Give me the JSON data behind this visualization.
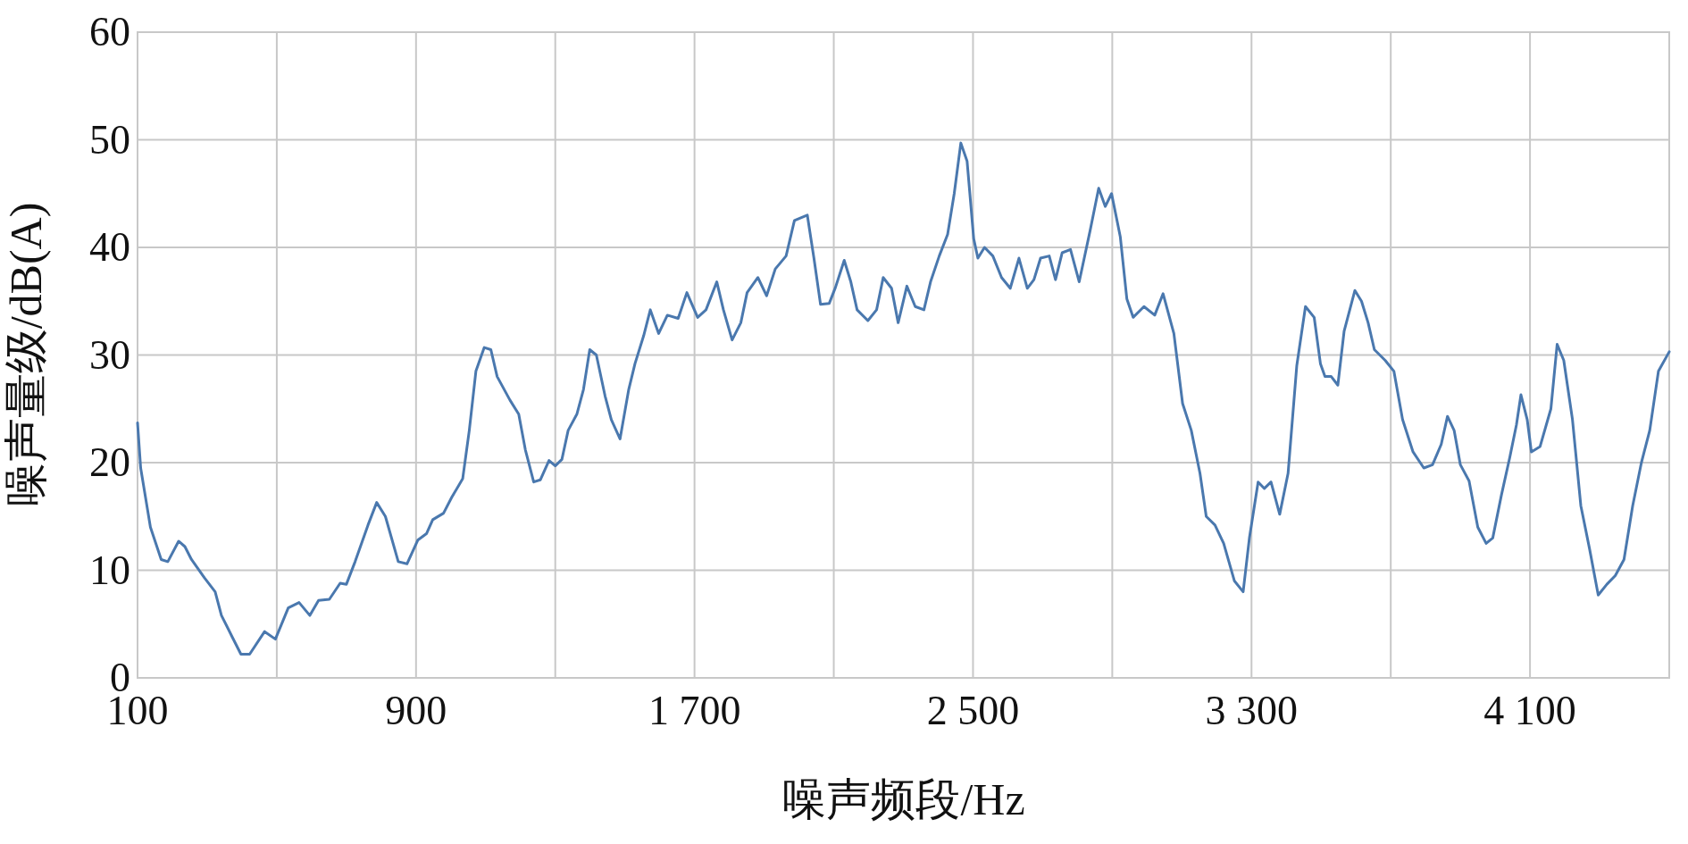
{
  "chart_data": {
    "type": "line",
    "xlabel": "噪声频段/Hz",
    "ylabel": "噪声量级/dB(A)",
    "xlim": [
      100,
      4500
    ],
    "ylim": [
      0,
      60
    ],
    "xticks": [
      100,
      {
        "value": 500,
        "label": null
      },
      {
        "value": 900,
        "label": "900"
      },
      {
        "value": 1300,
        "label": null
      },
      {
        "value": 1700,
        "label": "1 700"
      },
      {
        "value": 2100,
        "label": null
      },
      {
        "value": 2500,
        "label": "2 500"
      },
      {
        "value": 2900,
        "label": null
      },
      {
        "value": 3300,
        "label": "3 300"
      },
      {
        "value": 3700,
        "label": null
      },
      {
        "value": 4100,
        "label": "4 100"
      },
      {
        "value": 4500,
        "label": null
      }
    ],
    "yticks": [
      0,
      10,
      20,
      30,
      40,
      50,
      60
    ],
    "grid": true,
    "marker": "none",
    "line_style": "solid",
    "series": [
      {
        "color": "#4a78ae",
        "x": [
          100,
          109,
          137,
          168,
          187,
          218,
          236,
          255,
          292,
          323,
          341,
          372,
          397,
          422,
          465,
          496,
          533,
          564,
          595,
          620,
          651,
          682,
          700,
          725,
          762,
          787,
          812,
          849,
          874,
          905,
          930,
          948,
          979,
          1003,
          1034,
          1053,
          1072,
          1096,
          1115,
          1133,
          1170,
          1195,
          1214,
          1238,
          1257,
          1282,
          1300,
          1319,
          1337,
          1362,
          1381,
          1399,
          1418,
          1443,
          1461,
          1486,
          1511,
          1529,
          1554,
          1573,
          1597,
          1622,
          1653,
          1678,
          1709,
          1733,
          1764,
          1783,
          1808,
          1833,
          1851,
          1882,
          1907,
          1932,
          1963,
          1987,
          2024,
          2043,
          2062,
          2087,
          2105,
          2130,
          2149,
          2167,
          2198,
          2223,
          2242,
          2266,
          2285,
          2310,
          2334,
          2359,
          2378,
          2403,
          2427,
          2446,
          2465,
          2483,
          2502,
          2514,
          2533,
          2557,
          2582,
          2607,
          2632,
          2656,
          2675,
          2694,
          2719,
          2737,
          2756,
          2780,
          2805,
          2836,
          2861,
          2880,
          2898,
          2923,
          2942,
          2960,
          2991,
          3022,
          3046,
          3077,
          3102,
          3127,
          3152,
          3170,
          3195,
          3220,
          3251,
          3276,
          3294,
          3319,
          3337,
          3356,
          3381,
          3405,
          3430,
          3455,
          3480,
          3498,
          3511,
          3529,
          3548,
          3566,
          3597,
          3616,
          3635,
          3653,
          3684,
          3709,
          3734,
          3764,
          3795,
          3820,
          3845,
          3863,
          3882,
          3900,
          3925,
          3950,
          3974,
          3993,
          4018,
          4042,
          4061,
          4074,
          4092,
          4104,
          4129,
          4160,
          4178,
          4197,
          4222,
          4246,
          4271,
          4296,
          4321,
          4345,
          4370,
          4395,
          4420,
          4444,
          4469,
          4500
        ],
        "values": [
          23.7,
          19.5,
          14,
          11,
          10.8,
          12.7,
          12.2,
          11,
          9.3,
          8,
          5.8,
          3.8,
          2.2,
          2.2,
          4.3,
          3.6,
          6.5,
          7,
          5.8,
          7.2,
          7.3,
          8.8,
          8.7,
          10.8,
          14.2,
          16.3,
          15,
          10.8,
          10.6,
          12.8,
          13.4,
          14.7,
          15.3,
          16.8,
          18.5,
          23,
          28.5,
          30.7,
          30.5,
          28,
          25.8,
          24.5,
          21.2,
          18.2,
          18.4,
          20.2,
          19.7,
          20.3,
          23,
          24.5,
          26.8,
          30.5,
          30,
          26.2,
          24,
          22.2,
          26.8,
          29.2,
          31.8,
          34.2,
          32,
          33.7,
          33.4,
          35.8,
          33.5,
          34.2,
          36.8,
          34.2,
          31.4,
          33,
          35.8,
          37.2,
          35.5,
          38,
          39.2,
          42.5,
          43,
          39,
          34.7,
          34.8,
          36.3,
          38.8,
          36.8,
          34.2,
          33.2,
          34.2,
          37.2,
          36.2,
          33,
          36.4,
          34.5,
          34.2,
          36.8,
          39.2,
          41.2,
          45,
          49.7,
          48,
          40.8,
          39,
          40,
          39.2,
          37.2,
          36.2,
          39,
          36.2,
          37,
          39,
          39.2,
          37,
          39.5,
          39.8,
          36.8,
          41.5,
          45.5,
          43.8,
          45,
          41,
          35.2,
          33.5,
          34.5,
          33.7,
          35.7,
          32,
          25.5,
          23,
          19,
          15,
          14.2,
          12.5,
          9,
          8,
          13,
          18.2,
          17.6,
          18.2,
          15.2,
          19,
          29,
          34.5,
          33.5,
          29.2,
          28,
          28,
          27.2,
          32.2,
          36,
          35,
          33,
          30.5,
          29.5,
          28.5,
          24,
          21,
          19.5,
          19.8,
          21.7,
          24.3,
          23,
          19.8,
          18.3,
          14,
          12.5,
          13,
          17,
          20.5,
          23.5,
          26.3,
          24,
          21,
          21.5,
          25,
          31,
          29.5,
          24,
          16,
          12,
          7.7,
          8.7,
          9.5,
          11,
          16,
          20,
          23,
          28.5,
          30.3
        ]
      }
    ]
  }
}
